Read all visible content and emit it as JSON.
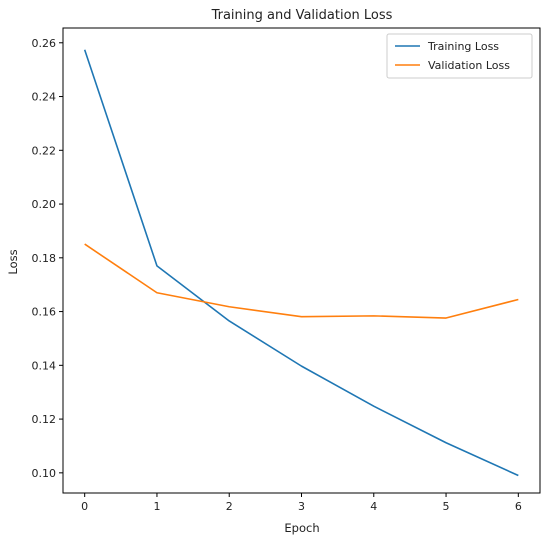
{
  "chart_data": {
    "type": "line",
    "title": "Training and Validation Loss",
    "xlabel": "Epoch",
    "ylabel": "Loss",
    "x": [
      0,
      1,
      2,
      3,
      4,
      5,
      6
    ],
    "xlim": [
      -0.3,
      6.3
    ],
    "ylim": [
      0.0925,
      0.2655
    ],
    "xticks": [
      "0",
      "1",
      "2",
      "3",
      "4",
      "5",
      "6"
    ],
    "yticks": [
      "0.10",
      "0.12",
      "0.14",
      "0.16",
      "0.18",
      "0.20",
      "0.22",
      "0.24",
      "0.26"
    ],
    "grid": false,
    "legend_position": "top-right",
    "series": [
      {
        "name": "Training Loss",
        "color": "#1f77b4",
        "values": [
          0.2574,
          0.177,
          0.1565,
          0.1397,
          0.1248,
          0.1112,
          0.099
        ]
      },
      {
        "name": "Validation Loss",
        "color": "#ff7f0e",
        "values": [
          0.1851,
          0.167,
          0.1618,
          0.1581,
          0.1584,
          0.1576,
          0.1645
        ]
      }
    ]
  }
}
